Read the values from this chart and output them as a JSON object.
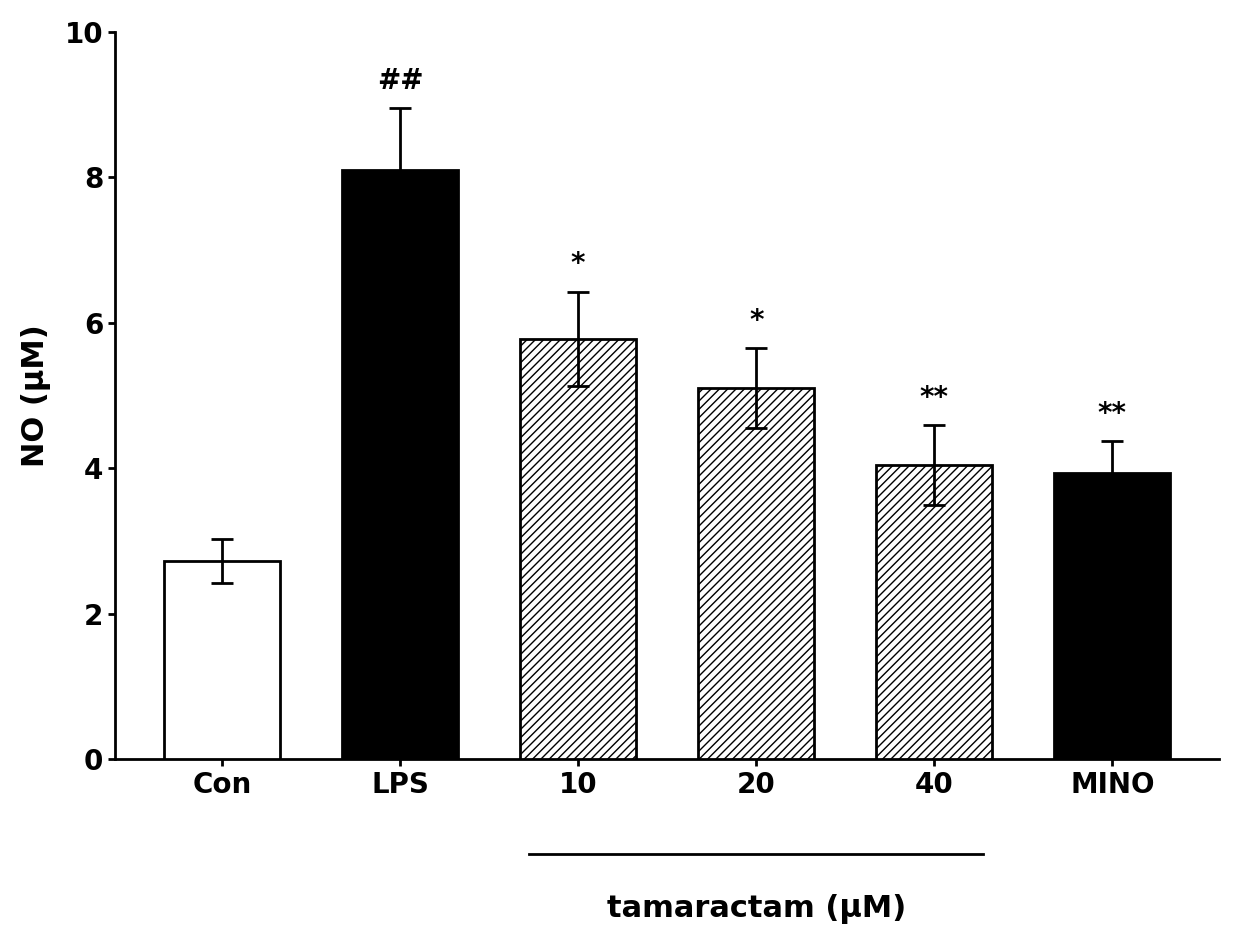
{
  "categories": [
    "Con",
    "LPS",
    "10",
    "20",
    "40",
    "MINO"
  ],
  "values": [
    2.73,
    8.1,
    5.78,
    5.1,
    4.05,
    3.93
  ],
  "errors": [
    0.3,
    0.85,
    0.65,
    0.55,
    0.55,
    0.45
  ],
  "bar_styles": [
    "white",
    "black",
    "hatch",
    "hatch",
    "hatch",
    "black"
  ],
  "hatch_pattern": "////",
  "annotations": [
    "",
    "##",
    "*",
    "*",
    "**",
    "**"
  ],
  "ylabel": "NO (μM)",
  "xlabel_main": "tamaractam (μM)",
  "ylim": [
    0,
    10
  ],
  "yticks": [
    0,
    2,
    4,
    6,
    8,
    10
  ],
  "bar_width": 0.65,
  "annotation_fontsize": 20,
  "axis_label_fontsize": 22,
  "tick_fontsize": 20,
  "bar_edge_color": "black",
  "bar_edge_linewidth": 2.0,
  "error_cap_size": 8,
  "error_linewidth": 2.0,
  "background_color": "#ffffff"
}
